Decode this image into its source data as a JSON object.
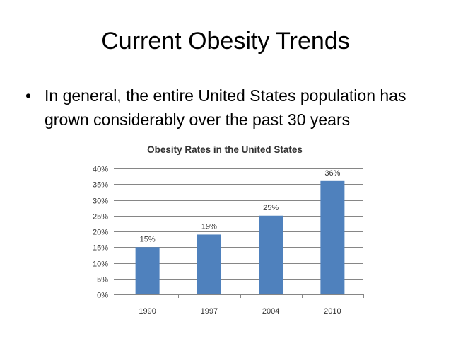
{
  "slide": {
    "title": "Current Obesity Trends",
    "bullet_symbol": "•",
    "bullet_text": "In general, the entire United States population has grown considerably over the past 30 years"
  },
  "chart_data": {
    "type": "bar",
    "title": "Obesity Rates in the United States",
    "categories": [
      "1990",
      "1997",
      "2004",
      "2010"
    ],
    "values": [
      15,
      19,
      25,
      36
    ],
    "data_labels": [
      "15%",
      "19%",
      "25%",
      "36%"
    ],
    "ylim": [
      0,
      40
    ],
    "yticks": [
      0,
      5,
      10,
      15,
      20,
      25,
      30,
      35,
      40
    ],
    "ytick_labels": [
      "0%",
      "5%",
      "10%",
      "15%",
      "20%",
      "25%",
      "30%",
      "35%",
      "40%"
    ],
    "xlabel": "",
    "ylabel": "",
    "grid": true,
    "legend": "none",
    "bar_color": "#4F81BD"
  }
}
